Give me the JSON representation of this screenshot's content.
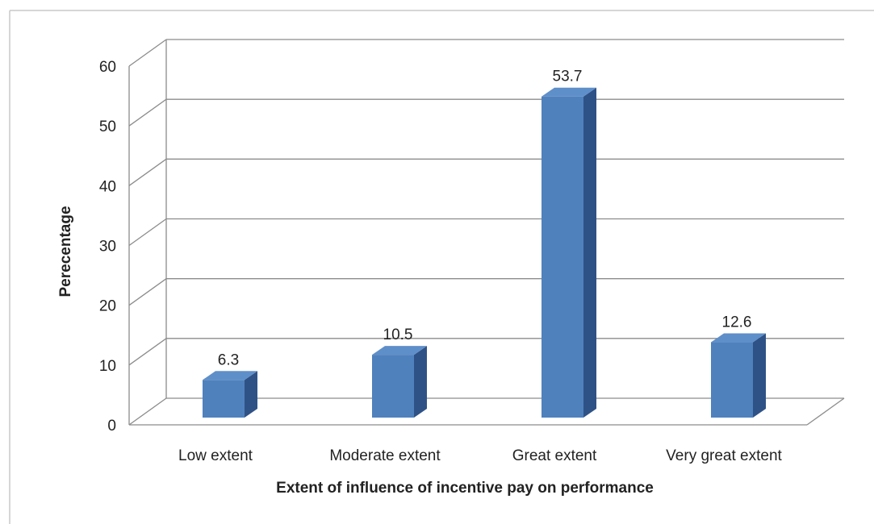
{
  "chart_data": {
    "type": "bar",
    "categories": [
      "Low extent",
      "Moderate extent",
      "Great extent",
      "Very great extent"
    ],
    "values": [
      6.3,
      10.5,
      53.7,
      12.6
    ],
    "data_labels": [
      "6.3",
      "10.5",
      "53.7",
      "12.6"
    ],
    "xlabel": "Extent of influence of incentive pay on performance",
    "ylabel": "Perecentage",
    "ylim": [
      0,
      60
    ],
    "yticks": [
      0,
      10,
      20,
      30,
      40,
      50,
      60
    ],
    "grid": true,
    "legend": "none",
    "style": "3d-column",
    "colors": {
      "bar_front": "#4f81bd",
      "bar_side": "#2f5286",
      "bar_top": "#5f8fc9",
      "grid": "#8c8c8c",
      "frame": "#c8c8c8"
    }
  }
}
